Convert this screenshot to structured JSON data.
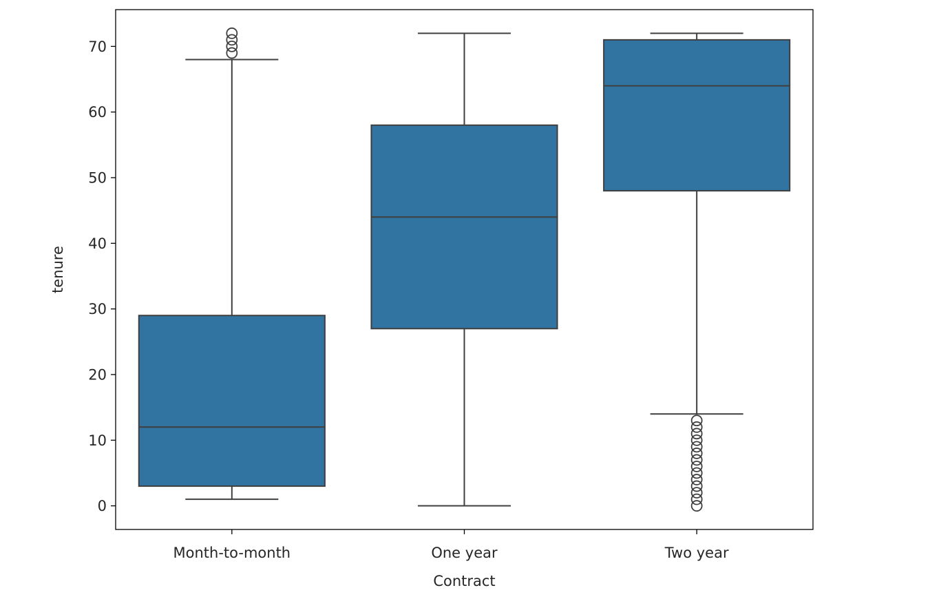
{
  "chart_data": {
    "type": "box",
    "title": "",
    "xlabel": "Contract",
    "ylabel": "tenure",
    "categories": [
      "Month-to-month",
      "One year",
      "Two year"
    ],
    "ylim": [
      -3.6,
      75.6
    ],
    "yticks": [
      0,
      10,
      20,
      30,
      40,
      50,
      60,
      70
    ],
    "grid": false,
    "box_color": "#3274a1",
    "line_color": "#3f3f3f",
    "boxes": [
      {
        "category": "Month-to-month",
        "whisker_low": 1,
        "q1": 3,
        "median": 12,
        "q3": 29,
        "whisker_high": 68,
        "outliers": [
          69,
          70,
          71,
          72
        ]
      },
      {
        "category": "One year",
        "whisker_low": 0,
        "q1": 27,
        "median": 44,
        "q3": 58,
        "whisker_high": 72,
        "outliers": []
      },
      {
        "category": "Two year",
        "whisker_low": 14,
        "q1": 48,
        "median": 64,
        "q3": 71,
        "whisker_high": 72,
        "outliers": [
          0,
          1,
          2,
          3,
          4,
          5,
          6,
          7,
          8,
          9,
          10,
          11,
          12,
          13
        ]
      }
    ]
  }
}
